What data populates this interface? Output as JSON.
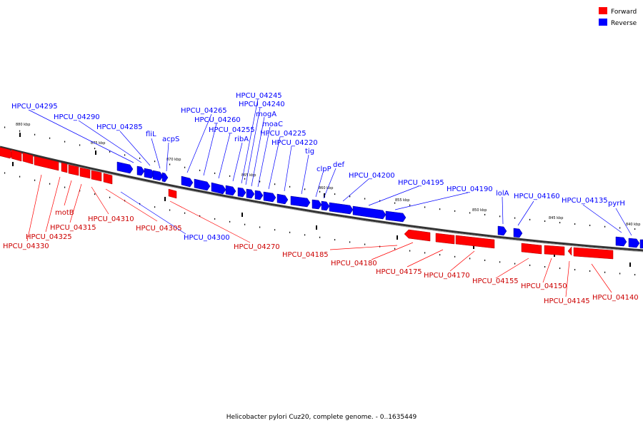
{
  "caption": "Helicobacter pylori Cuz20, complete genome. - 0..1635449",
  "legend": [
    {
      "label": "Forward",
      "color": "#ff0000"
    },
    {
      "label": "Reverse",
      "color": "#0000ff"
    }
  ],
  "ticks": [
    "880 kbp",
    "875 kbp",
    "870 kbp",
    "865 kbp",
    "860 kbp",
    "855 kbp",
    "850 kbp",
    "845 kbp",
    "840 kbp"
  ],
  "reverse_labels": [
    "HPCU_04295",
    "HPCU_04290",
    "HPCU_04285",
    "fliL",
    "acpS",
    "HPCU_04265",
    "HPCU_04260",
    "HPCU_04255",
    "ribA",
    "HPCU_04245",
    "HPCU_04240",
    "mogA",
    "moaC",
    "HPCU_04225",
    "HPCU_04220",
    "tig",
    "clpP",
    "def",
    "HPCU_04200",
    "HPCU_04195",
    "HPCU_04190",
    "lolA",
    "HPCU_04160",
    "HPCU_04135",
    "pyrH",
    "HPCU_04300"
  ],
  "forward_labels": [
    "HPCU_04330",
    "HPCU_04325",
    "motB",
    "HPCU_04315",
    "HPCU_04310",
    "HPCU_04305",
    "HPCU_04270",
    "HPCU_04185",
    "HPCU_04180",
    "HPCU_04175",
    "HPCU_04170",
    "HPCU_04155",
    "HPCU_04150",
    "HPCU_04145",
    "HPCU_04140"
  ]
}
